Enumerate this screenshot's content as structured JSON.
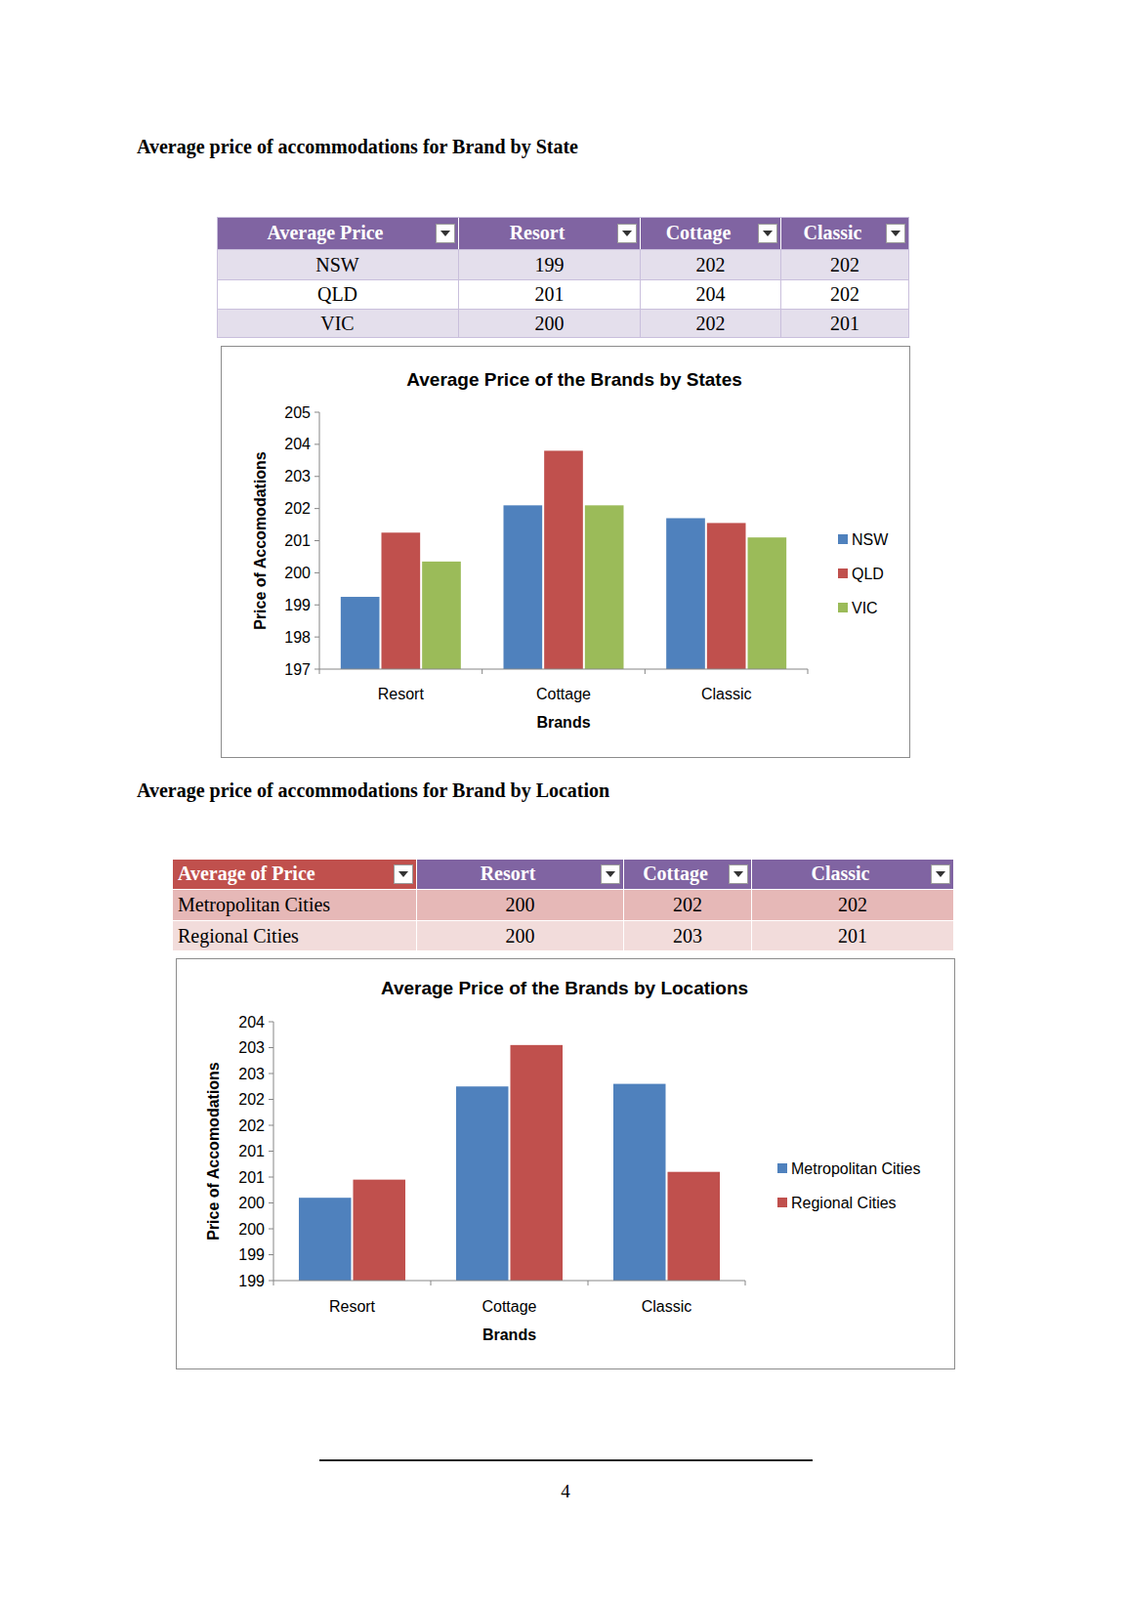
{
  "document": {
    "headings": [
      "Average price of accommodations for Brand by State",
      "Average price of accommodations for Brand by Location"
    ],
    "tables": [
      {
        "header": [
          "Average Price",
          "Resort",
          "Cottage",
          "Classic"
        ],
        "rows": [
          [
            "NSW",
            199,
            202,
            202
          ],
          [
            "QLD",
            201,
            204,
            202
          ],
          [
            "VIC",
            200,
            202,
            201
          ]
        ]
      },
      {
        "header": [
          "Average of Price",
          "Resort",
          "Cottage",
          "Classic"
        ],
        "rows": [
          [
            "Metropolitan Cities",
            200,
            202,
            202
          ],
          [
            "Regional Cities",
            200,
            203,
            201
          ]
        ]
      }
    ],
    "page_number": 4
  },
  "chart_data": [
    {
      "type": "bar",
      "title": "Average Price of the Brands by States",
      "x_label": "Brands",
      "y_label": "Price of Accomodations",
      "categories": [
        "Resort",
        "Cottage",
        "Classic"
      ],
      "series": [
        {
          "name": "NSW",
          "color": "#4f81bd",
          "values": [
            199.25,
            202.1,
            201.7
          ]
        },
        {
          "name": "QLD",
          "color": "#c0504d",
          "values": [
            201.25,
            203.8,
            201.55
          ]
        },
        {
          "name": "VIC",
          "color": "#9bbb59",
          "values": [
            200.35,
            202.1,
            201.1
          ]
        }
      ],
      "ylim": [
        197,
        205
      ],
      "yticks": [
        197,
        198,
        199,
        200,
        201,
        202,
        203,
        204,
        205
      ],
      "grid": false,
      "legend": "right"
    },
    {
      "type": "bar",
      "title": "Average Price of the Brands by Locations",
      "x_label": "Brands",
      "y_label": "Price of Accomodations",
      "categories": [
        "Resort",
        "Cottage",
        "Classic"
      ],
      "series": [
        {
          "name": "Metropolitan Cities",
          "color": "#4f81bd",
          "values": [
            200.1,
            202.25,
            202.3
          ]
        },
        {
          "name": "Regional Cities",
          "color": "#c0504d",
          "values": [
            200.45,
            203.05,
            200.6
          ]
        }
      ],
      "ylim": [
        198.5,
        203.5
      ],
      "yticks": [
        {
          "value": 198.5,
          "label": "199"
        },
        199,
        {
          "value": 199.5,
          "label": "200"
        },
        200,
        {
          "value": 200.5,
          "label": "201"
        },
        201,
        {
          "value": 201.5,
          "label": "202"
        },
        202,
        {
          "value": 202.5,
          "label": "203"
        },
        203,
        {
          "value": 203.5,
          "label": "204"
        }
      ],
      "grid": false,
      "legend": "right"
    }
  ]
}
